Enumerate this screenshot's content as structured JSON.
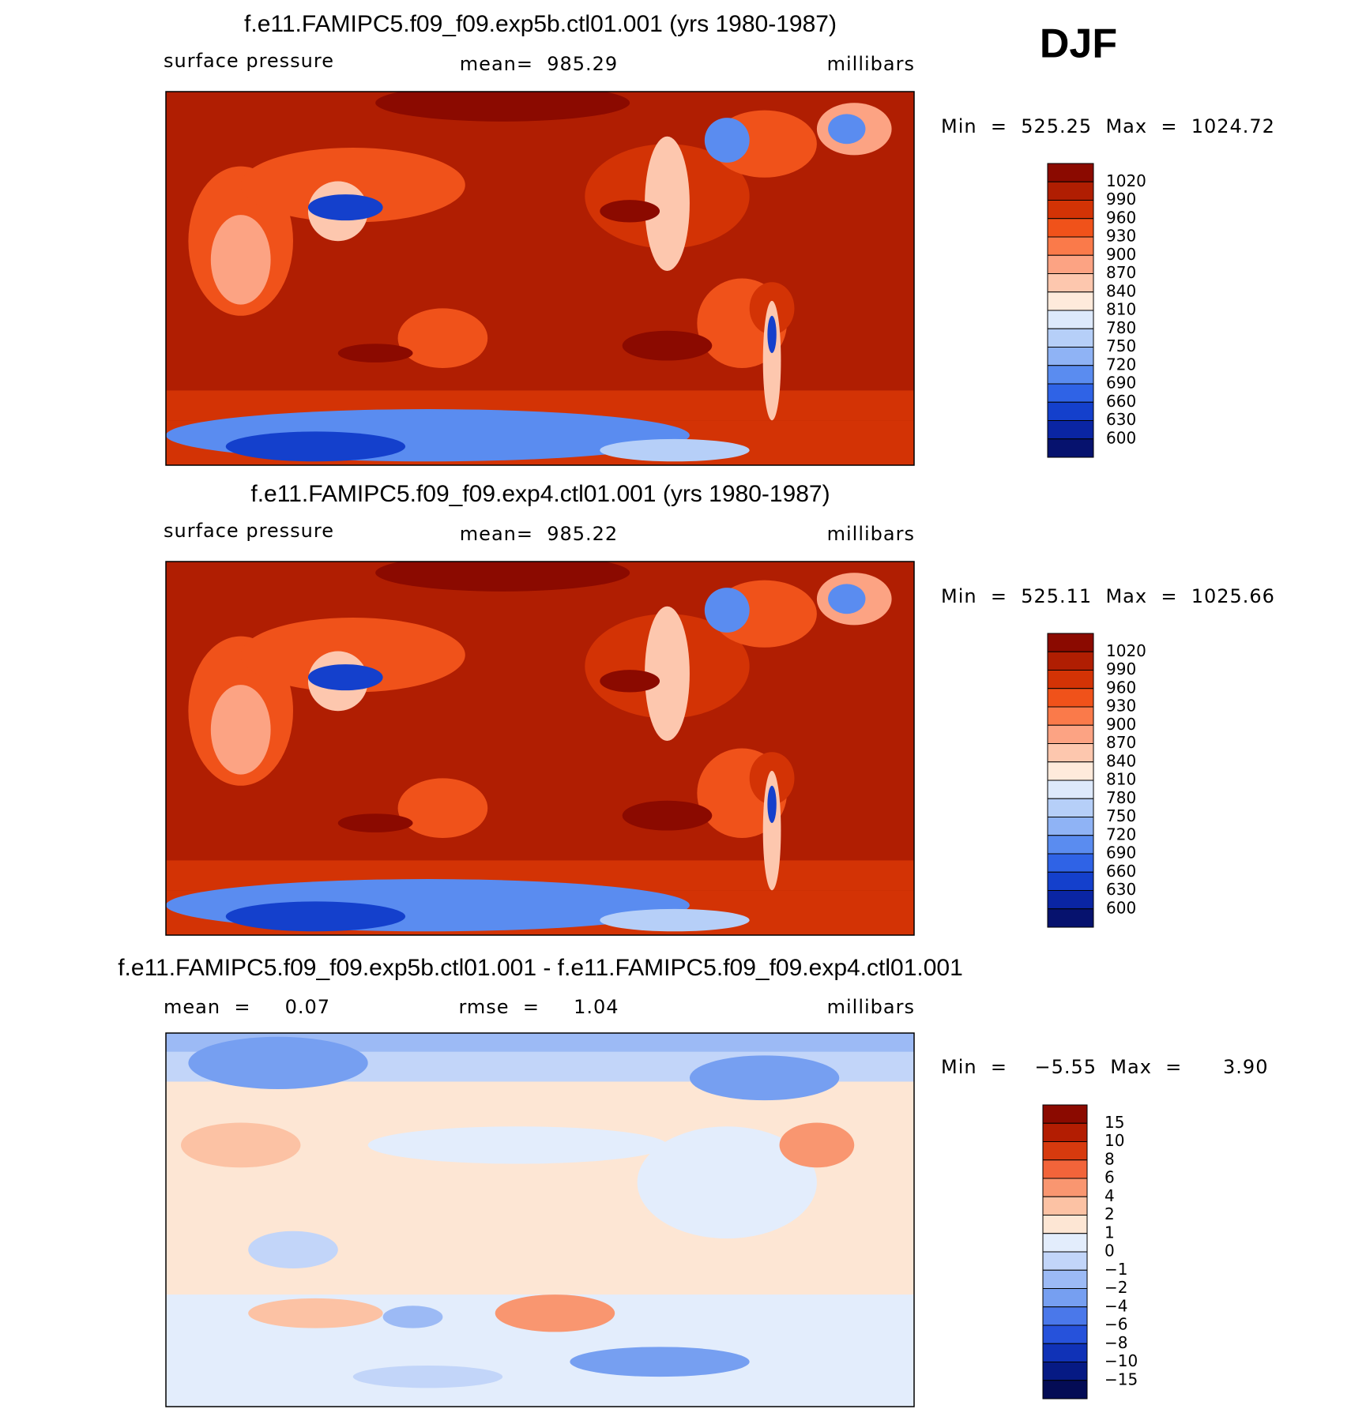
{
  "season": "DJF",
  "panels": [
    {
      "title": "f.e11.FAMIPC5.f09_f09.exp5b.ctl01.001 (yrs 1980-1987)",
      "left": "surface pressure",
      "center": "mean=  985.29",
      "right": "millibars",
      "minmax": "Min  =  525.25  Max  =  1024.72",
      "levels": [
        "1020",
        "990",
        "960",
        "930",
        "900",
        "870",
        "840",
        "810",
        "780",
        "750",
        "720",
        "690",
        "660",
        "630",
        "600"
      ]
    },
    {
      "title": "f.e11.FAMIPC5.f09_f09.exp4.ctl01.001 (yrs 1980-1987)",
      "left": "surface pressure",
      "center": "mean=  985.22",
      "right": "millibars",
      "minmax": "Min  =  525.11  Max  =  1025.66",
      "levels": [
        "1020",
        "990",
        "960",
        "930",
        "900",
        "870",
        "840",
        "810",
        "780",
        "750",
        "720",
        "690",
        "660",
        "630",
        "600"
      ]
    },
    {
      "title": "f.e11.FAMIPC5.f09_f09.exp5b.ctl01.001 - f.e11.FAMIPC5.f09_f09.exp4.ctl01.001",
      "left": "mean  =     0.07",
      "center": "rmse  =     1.04",
      "right": "millibars",
      "minmax": "Min  =    −5.55  Max  =      3.90",
      "levels": [
        "15",
        "10",
        "8",
        "6",
        "4",
        "2",
        "1",
        "0",
        "−1",
        "−2",
        "−4",
        "−6",
        "−8",
        "−10",
        "−15"
      ]
    }
  ]
}
